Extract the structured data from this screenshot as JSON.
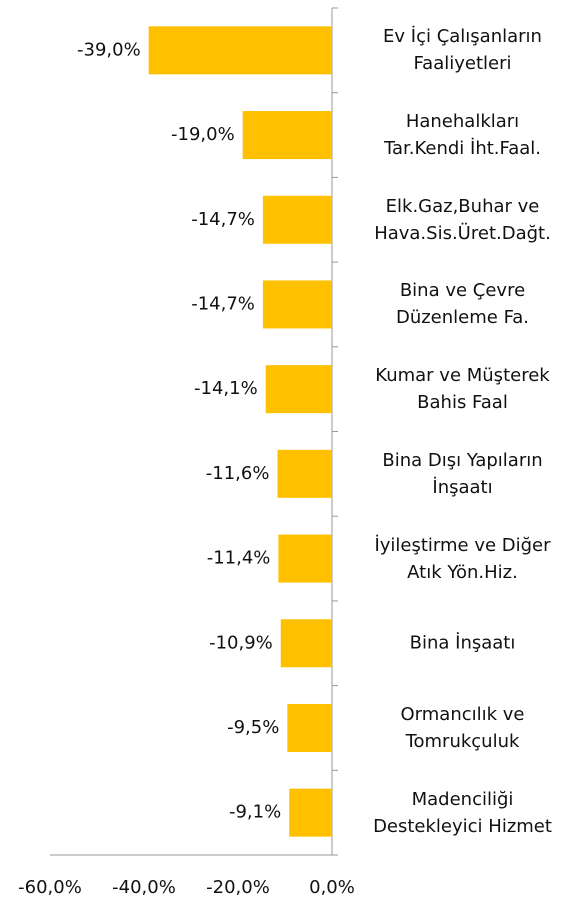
{
  "chart_data": {
    "type": "bar",
    "orientation": "horizontal",
    "categories": [
      "Ev İçi Çalışanların\nFaaliyetleri",
      "Hanehalkları\nTar.Kendi İht.Faal.",
      "Elk.Gaz,Buhar ve\nHava.Sis.Üret.Dağt.",
      "Bina ve Çevre\nDüzenleme Fa.",
      "Kumar ve Müşterek\nBahis Faal",
      "Bina Dışı Yapıların\nİnşaatı",
      "İyileştirme ve Diğer\nAtık Yön.Hiz.",
      "Bina İnşaatı",
      "Ormancılık ve\nTomrukçuluk",
      "Madenciliği\nDestekleyici Hizmet"
    ],
    "values": [
      -39.0,
      -19.0,
      -14.7,
      -14.7,
      -14.1,
      -11.6,
      -11.4,
      -10.9,
      -9.5,
      -9.1
    ],
    "value_labels": [
      "-39,0%",
      "-19,0%",
      "-14,7%",
      "-14,7%",
      "-14,1%",
      "-11,6%",
      "-11,4%",
      "-10,9%",
      "-9,5%",
      "-9,1%"
    ],
    "color": "#ffc000",
    "xlim": [
      -60,
      0
    ],
    "xticks": [
      {
        "value": -60,
        "label": "-60,0%"
      },
      {
        "value": -40,
        "label": "-40,0%"
      },
      {
        "value": -20,
        "label": "-20,0%"
      },
      {
        "value": 0,
        "label": "0,0%"
      }
    ],
    "grid": false
  }
}
